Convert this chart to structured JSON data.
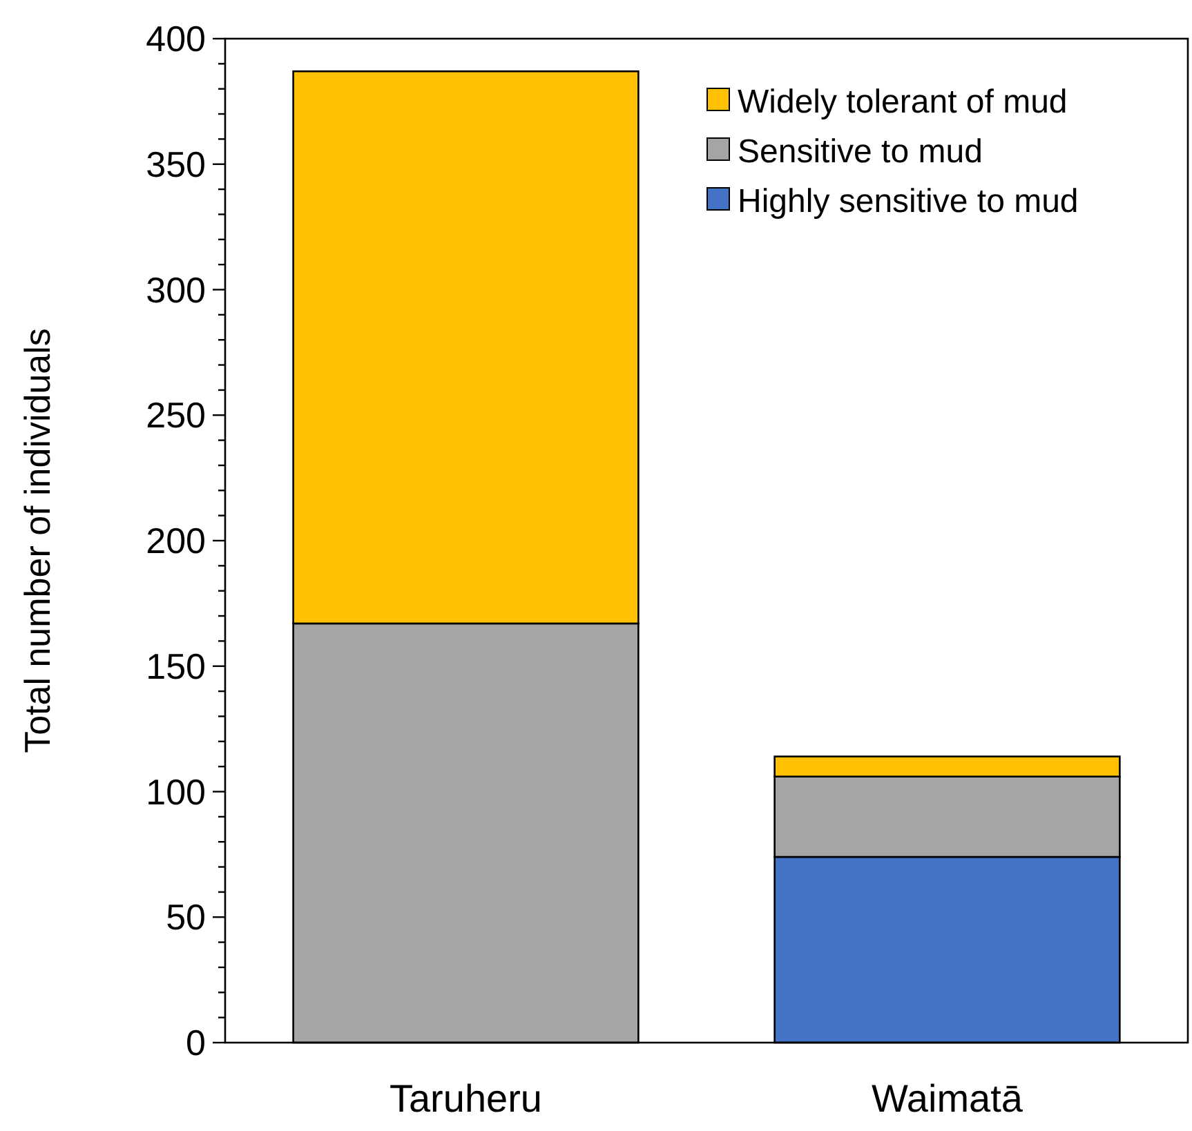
{
  "chart_data": {
    "type": "bar",
    "stacked": true,
    "ylabel": "Total number of individuals",
    "categories": [
      "Taruheru",
      "Waimatā"
    ],
    "series": [
      {
        "name": "Highly sensitive to mud",
        "color": "#4472c4",
        "values": [
          0,
          74
        ]
      },
      {
        "name": "Sensitive to mud",
        "color": "#a5a5a5",
        "values": [
          167,
          32
        ]
      },
      {
        "name": "Widely tolerant of mud",
        "color": "#ffc000",
        "values": [
          220,
          8
        ]
      }
    ],
    "ylim": [
      0,
      400
    ],
    "yticks": [
      0,
      {
        "value": 10,
        "label": null
      },
      {
        "value": 20,
        "label": null
      },
      {
        "value": 30,
        "label": null
      },
      {
        "value": 40,
        "label": null
      },
      50,
      {
        "value": 60,
        "label": null
      },
      {
        "value": 70,
        "label": null
      },
      {
        "value": 80,
        "label": null
      },
      {
        "value": 90,
        "label": null
      },
      100,
      {
        "value": 110,
        "label": null
      },
      {
        "value": 120,
        "label": null
      },
      {
        "value": 130,
        "label": null
      },
      {
        "value": 140,
        "label": null
      },
      150,
      {
        "value": 160,
        "label": null
      },
      {
        "value": 170,
        "label": null
      },
      {
        "value": 180,
        "label": null
      },
      {
        "value": 190,
        "label": null
      },
      200,
      {
        "value": 210,
        "label": null
      },
      {
        "value": 220,
        "label": null
      },
      {
        "value": 230,
        "label": null
      },
      {
        "value": 240,
        "label": null
      },
      250,
      {
        "value": 260,
        "label": null
      },
      {
        "value": 270,
        "label": null
      },
      {
        "value": 280,
        "label": null
      },
      {
        "value": 290,
        "label": null
      },
      300,
      {
        "value": 310,
        "label": null
      },
      {
        "value": 320,
        "label": null
      },
      {
        "value": 330,
        "label": null
      },
      {
        "value": 340,
        "label": null
      },
      350,
      {
        "value": 360,
        "label": null
      },
      {
        "value": 370,
        "label": null
      },
      {
        "value": 380,
        "label": null
      },
      {
        "value": 390,
        "label": null
      },
      400
    ],
    "legend": "top right",
    "grid": false
  }
}
